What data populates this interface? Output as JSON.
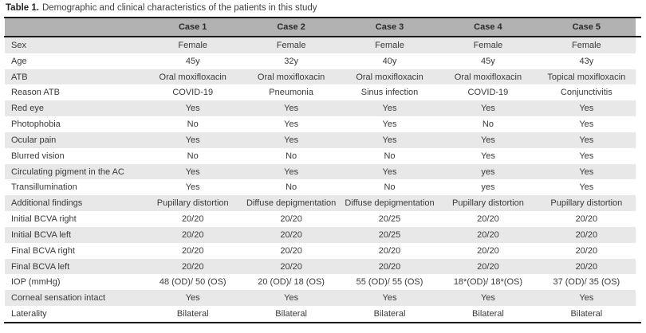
{
  "title": {
    "label": "Table 1.",
    "text": "Demographic and clinical characteristics of the patients in this study"
  },
  "table": {
    "columns": [
      "",
      "Case 1",
      "Case 2",
      "Case 3",
      "Case 4",
      "Case 5"
    ],
    "rows": [
      {
        "label": "Sex",
        "values": [
          "Female",
          "Female",
          "Female",
          "Female",
          "Female"
        ]
      },
      {
        "label": "Age",
        "values": [
          "45y",
          "32y",
          "40y",
          "45y",
          "43y"
        ]
      },
      {
        "label": "ATB",
        "values": [
          "Oral moxifloxacin",
          "Oral moxifloxacin",
          "Oral moxifloxacin",
          "Oral moxifloxacin",
          "Topical moxifloxacin"
        ]
      },
      {
        "label": "Reason ATB",
        "values": [
          "COVID-19",
          "Pneumonia",
          "Sinus infection",
          "COVID-19",
          "Conjunctivitis"
        ]
      },
      {
        "label": "Red eye",
        "values": [
          "Yes",
          "Yes",
          "Yes",
          "Yes",
          "Yes"
        ]
      },
      {
        "label": "Photophobia",
        "values": [
          "No",
          "Yes",
          "Yes",
          "No",
          "Yes"
        ]
      },
      {
        "label": "Ocular pain",
        "values": [
          "Yes",
          "Yes",
          "Yes",
          "Yes",
          "Yes"
        ]
      },
      {
        "label": "Blurred vision",
        "values": [
          "No",
          "No",
          "No",
          "Yes",
          "Yes"
        ]
      },
      {
        "label": "Circulating pigment in the AC",
        "values": [
          "Yes",
          "Yes",
          "Yes",
          "yes",
          "Yes"
        ]
      },
      {
        "label": "Transillumination",
        "values": [
          "Yes",
          "No",
          "No",
          "yes",
          "Yes"
        ]
      },
      {
        "label": "Additional findings",
        "values": [
          "Pupillary distortion",
          "Diffuse depigmentation",
          "Diffuse depigmentation",
          "Pupillary distortion",
          "Pupillary distortion"
        ]
      },
      {
        "label": "Initial BCVA right",
        "values": [
          "20/20",
          "20/20",
          "20/25",
          "20/20",
          "20/20"
        ]
      },
      {
        "label": "Initial BCVA left",
        "values": [
          "20/20",
          "20/20",
          "20/25",
          "20/20",
          "20/20"
        ]
      },
      {
        "label": "Final BCVA right",
        "values": [
          "20/20",
          "20/20",
          "20/20",
          "20/20",
          "20/20"
        ]
      },
      {
        "label": "Final BCVA left",
        "values": [
          "20/20",
          "20/20",
          "20/20",
          "20/20",
          "20/20"
        ]
      },
      {
        "label": "IOP (mmHg)",
        "values": [
          "48 (OD)/ 50 (OS)",
          "20 (OD)/ 18 (OS)",
          "55 (OD)/ 55 (OS)",
          "18*(OD)/ 18*(OS)",
          "37 (OD)/ 35 (OS)"
        ]
      },
      {
        "label": "Corneal sensation intact",
        "values": [
          "Yes",
          "Yes",
          "Yes",
          "Yes",
          "Yes"
        ]
      },
      {
        "label": "Laterality",
        "values": [
          "Bilateral",
          "Bilateral",
          "Bilateral",
          "Bilateral",
          "Bilateral"
        ]
      }
    ]
  },
  "colors": {
    "header_bg": "#b2b2b2",
    "stripe_bg": "#e8e8e8",
    "rule": "#1a1a1a",
    "text": "#3a3a3a",
    "page_bg": "#ffffff"
  }
}
